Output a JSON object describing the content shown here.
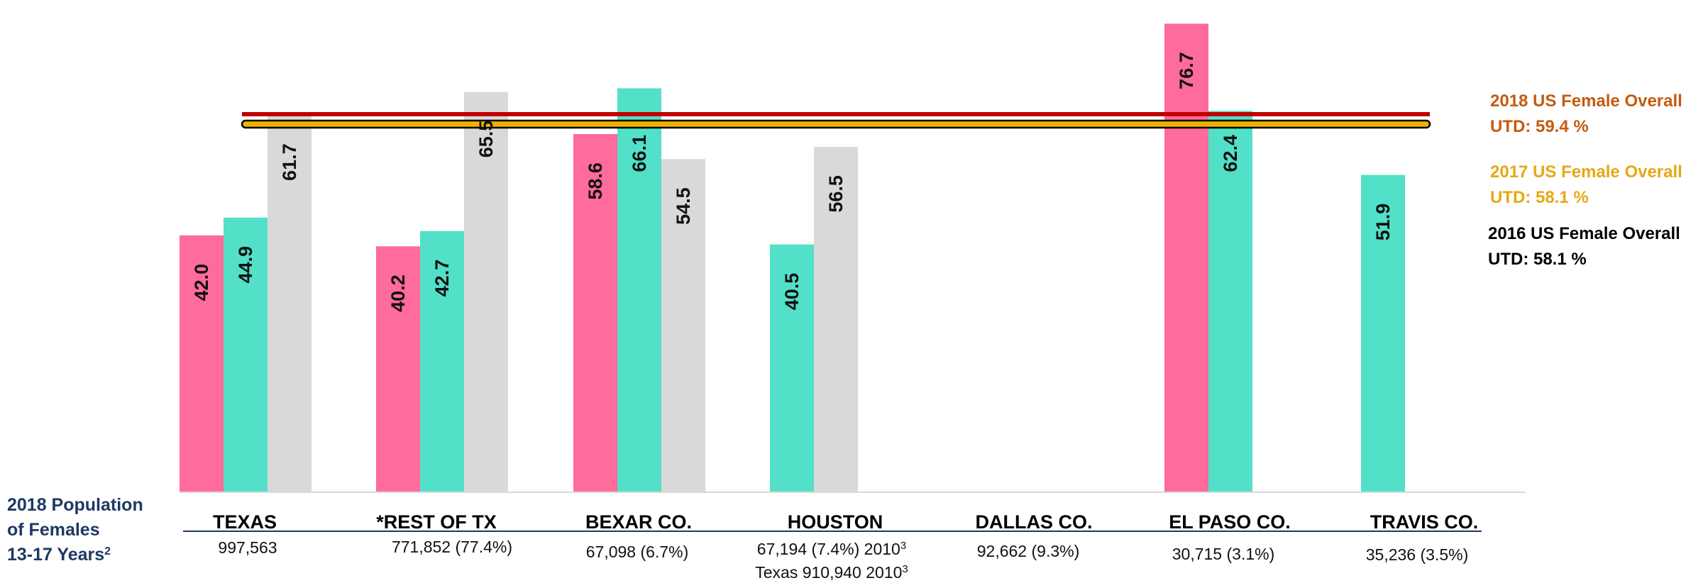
{
  "chart_data": {
    "type": "bar",
    "categories": [
      "TEXAS",
      "*REST OF TX",
      "BEXAR CO.",
      "HOUSTON",
      "DALLAS CO.",
      "EL PASO CO.",
      "TRAVIS CO."
    ],
    "series": [
      {
        "color": "#ff6b9a",
        "values": [
          42.0,
          40.2,
          58.6,
          null,
          null,
          76.7,
          null
        ]
      },
      {
        "color": "#52e0c8",
        "values": [
          44.9,
          42.7,
          66.1,
          40.5,
          null,
          62.4,
          51.9
        ]
      },
      {
        "color": "#d9d9d9",
        "values": [
          61.7,
          65.5,
          54.5,
          56.5,
          null,
          null,
          null
        ]
      }
    ],
    "value_labels": [
      [
        "42.0",
        "40.2",
        "58.6",
        "",
        "",
        "76.7",
        ""
      ],
      [
        "44.9",
        "42.7",
        "66.1",
        "40.5",
        "",
        "62.4",
        "51.9"
      ],
      [
        "61.7",
        "65.5",
        "54.5",
        "56.5",
        "",
        "",
        ""
      ]
    ],
    "hidden_value_labels": [
      [
        false,
        false,
        false,
        false,
        false,
        false,
        false
      ],
      [
        false,
        false,
        true,
        false,
        false,
        true,
        false
      ],
      [
        false,
        false,
        false,
        false,
        false,
        false,
        false
      ]
    ],
    "ylim": [
      0,
      80
    ],
    "grid": false,
    "reference_lines": [
      {
        "value": 59.4,
        "color": "#c00000",
        "label_lines": [
          "2018 US  Female Overall",
          "UTD: 59.4 %"
        ],
        "label_color": "#c55a11"
      },
      {
        "value": 58.1,
        "color": "#f0b400",
        "label_lines": [
          "2017 US  Female Overall",
          "UTD: 58.1 %"
        ],
        "label_color": "#e6a817"
      },
      {
        "value": 58.1,
        "color": "#000000",
        "label_lines": [
          "2016 US  Female Overall",
          "UTD: 58.1 %"
        ],
        "label_color": "#000000"
      }
    ],
    "population_row": {
      "title_lines": [
        "2018 Population",
        "of Females",
        "13-17 Years"
      ],
      "title_superscript": "2",
      "values": [
        {
          "lines": [
            {
              "text": "997,563",
              "sup": ""
            }
          ]
        },
        {
          "lines": [
            {
              "text": "771,852 (77.4%)",
              "sup": ""
            }
          ]
        },
        {
          "lines": [
            {
              "text": "67,098 (6.7%)",
              "sup": ""
            }
          ]
        },
        {
          "lines": [
            {
              "text": "67,194 (7.4%) 2010",
              "sup": "3"
            },
            {
              "text": "Texas 910,940  2010",
              "sup": "3"
            }
          ]
        },
        {
          "lines": [
            {
              "text": "92,662 (9.3%)",
              "sup": ""
            }
          ]
        },
        {
          "lines": [
            {
              "text": "30,715 (3.1%)",
              "sup": ""
            }
          ]
        },
        {
          "lines": [
            {
              "text": "35,236 (3.5%)",
              "sup": ""
            }
          ]
        }
      ]
    }
  }
}
